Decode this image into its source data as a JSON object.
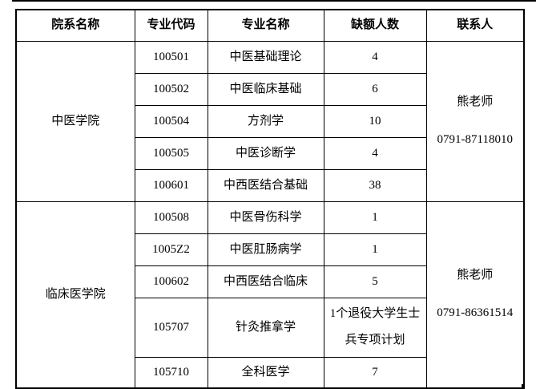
{
  "colors": {
    "background": "#ffffff",
    "text": "#000000",
    "border": "#000000"
  },
  "table": {
    "headers": {
      "department": "院系名称",
      "code": "专业代码",
      "major": "专业名称",
      "vacancy": "缺额人数",
      "contact": "联系人"
    },
    "sections": [
      {
        "department": "中医学院",
        "contact_name": "熊老师",
        "contact_phone": "0791-87118010",
        "rows": [
          {
            "code": "100501",
            "major": "中医基础理论",
            "vacancy": "4"
          },
          {
            "code": "100502",
            "major": "中医临床基础",
            "vacancy": "6"
          },
          {
            "code": "100504",
            "major": "方剂学",
            "vacancy": "10"
          },
          {
            "code": "100505",
            "major": "中医诊断学",
            "vacancy": "4"
          },
          {
            "code": "100601",
            "major": "中西医结合基础",
            "vacancy": "38"
          }
        ]
      },
      {
        "department": "临床医学院",
        "contact_name": "熊老师",
        "contact_phone": "0791-86361514",
        "rows": [
          {
            "code": "100508",
            "major": "中医骨伤科学",
            "vacancy": "1"
          },
          {
            "code": "1005Z2",
            "major": "中医肛肠病学",
            "vacancy": "1"
          },
          {
            "code": "100602",
            "major": "中西医结合临床",
            "vacancy": "5"
          },
          {
            "code": "105707",
            "major": "针灸推拿学",
            "vacancy": "1个退役大学生士兵专项计划"
          },
          {
            "code": "105710",
            "major": "全科医学",
            "vacancy": "7"
          }
        ]
      }
    ]
  }
}
